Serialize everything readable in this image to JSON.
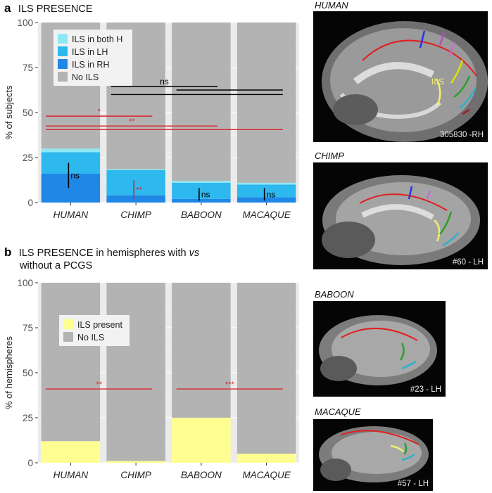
{
  "panel_a": {
    "letter": "a",
    "title": "ILS PRESENCE"
  },
  "panel_b": {
    "letter": "b",
    "title_pre": "ILS PRESENCE in hemispheres with ",
    "title_vs": "vs",
    "title_line2": "without a PCGS"
  },
  "colors": {
    "both": "#8EE9F5",
    "lh": "#2DB8EE",
    "rh": "#1F87E6",
    "none": "#B3B3B3",
    "present": "#FFFF91",
    "panel_bg": "#EBEBEB",
    "sig_red": "#D7262B",
    "ns_black": "#000000"
  },
  "chart_data": [
    {
      "type": "bar",
      "stacked": true,
      "categories": [
        "HUMAN",
        "CHIMP",
        "BABOON",
        "MACAQUE"
      ],
      "series": [
        {
          "name": "ILS in RH",
          "values": [
            16,
            4,
            2,
            3
          ]
        },
        {
          "name": "ILS in LH",
          "values": [
            12,
            14,
            9,
            7
          ]
        },
        {
          "name": "ILS  in both H",
          "values": [
            2,
            0.5,
            1,
            1
          ]
        },
        {
          "name": "No ILS",
          "values": [
            70,
            81.5,
            88,
            89
          ]
        }
      ],
      "ylabel": "% of subjects",
      "yticks": [
        0,
        25,
        50,
        75,
        100
      ],
      "ylim": [
        0,
        100
      ],
      "legend_position": "top-left",
      "annotations": [
        {
          "kind": "bracket",
          "from": "HUMAN",
          "to": "CHIMP",
          "y": 48,
          "label": "*",
          "color": "red"
        },
        {
          "kind": "bracket",
          "from": "HUMAN",
          "to": "BABOON",
          "y": 42.5,
          "label": "**",
          "color": "red"
        },
        {
          "kind": "bracket",
          "from": "HUMAN",
          "to": "MACAQUE",
          "y": 40.5,
          "label": "",
          "color": "red"
        },
        {
          "kind": "bracket",
          "from": "CHIMP",
          "to": "BABOON",
          "y": 64.5,
          "label": "ns",
          "color": "black"
        },
        {
          "kind": "bracket",
          "from": "BABOON",
          "to": "MACAQUE",
          "y": 62.5,
          "label": "",
          "color": "black"
        },
        {
          "kind": "bracket",
          "from": "CHIMP",
          "to": "MACAQUE",
          "y": 60,
          "label": "",
          "color": "black"
        },
        {
          "kind": "vertical",
          "at": "HUMAN",
          "y0": 8,
          "y1": 22,
          "label": "ns",
          "color": "black"
        },
        {
          "kind": "vertical",
          "at": "CHIMP",
          "y0": 2,
          "y1": 12.5,
          "label": "**",
          "color": "red"
        },
        {
          "kind": "vertical",
          "at": "BABOON",
          "y0": 1,
          "y1": 8,
          "label": "ns",
          "color": "black"
        },
        {
          "kind": "vertical",
          "at": "MACAQUE",
          "y0": 1,
          "y1": 8,
          "label": "ns",
          "color": "black"
        }
      ]
    },
    {
      "type": "bar",
      "stacked": true,
      "categories": [
        "HUMAN",
        "CHIMP",
        "BABOON",
        "MACAQUE"
      ],
      "series": [
        {
          "name": "ILS present",
          "values": [
            12,
            1,
            25,
            5
          ]
        },
        {
          "name": "No ILS",
          "values": [
            88,
            99,
            75,
            95
          ]
        }
      ],
      "ylabel": "% of hemispheres",
      "yticks": [
        0,
        25,
        50,
        75,
        100
      ],
      "ylim": [
        0,
        100
      ],
      "legend_position": "top-left",
      "annotations": [
        {
          "kind": "bracket",
          "from": "HUMAN",
          "to": "CHIMP",
          "y": 41,
          "label": "**",
          "color": "red"
        },
        {
          "kind": "bracket",
          "from": "BABOON",
          "to": "MACAQUE",
          "y": 41,
          "label": "***",
          "color": "red"
        }
      ]
    }
  ],
  "images": [
    {
      "label": "HUMAN",
      "id": "305830 -RH"
    },
    {
      "label": "CHIMP",
      "id": "#60 - LH"
    },
    {
      "label": "BABOON",
      "id": "#23 - LH"
    },
    {
      "label": "MACAQUE",
      "id": "#57 - LH"
    }
  ]
}
